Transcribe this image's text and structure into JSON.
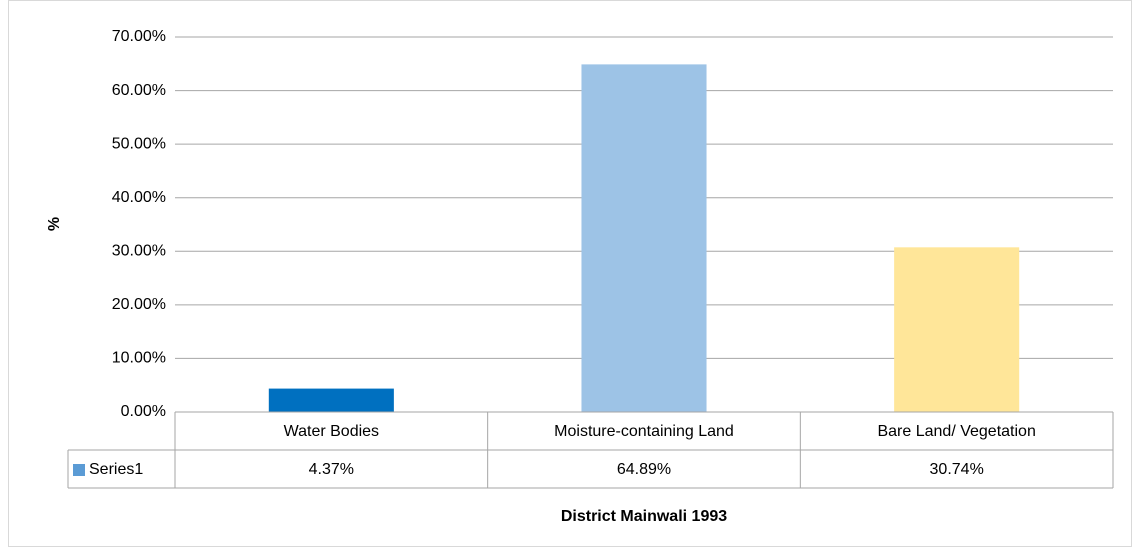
{
  "chart_data": {
    "type": "bar",
    "x_label": "District Mainwali 1993",
    "y_label": "%",
    "categories": [
      "Water Bodies",
      "Moisture-containing Land",
      "Bare Land/ Vegetation"
    ],
    "series": [
      {
        "name": "Series1",
        "color": "#5b9bd5",
        "colors": [
          "#0070c0",
          "#9dc3e6",
          "#ffe699"
        ],
        "values": [
          4.37,
          64.89,
          30.74
        ],
        "value_labels": [
          "4.37%",
          "64.89%",
          "30.74%"
        ]
      }
    ],
    "ylim": [
      0,
      70
    ],
    "yticks": [
      {
        "value": 0,
        "label": "0.00%"
      },
      {
        "value": 10,
        "label": "10.00%"
      },
      {
        "value": 20,
        "label": "20.00%"
      },
      {
        "value": 30,
        "label": "30.00%"
      },
      {
        "value": 40,
        "label": "40.00%"
      },
      {
        "value": 50,
        "label": "50.00%"
      },
      {
        "value": 60,
        "label": "60.00%"
      },
      {
        "value": 70,
        "label": "70.00%"
      }
    ],
    "grid": true,
    "data_table": true
  }
}
